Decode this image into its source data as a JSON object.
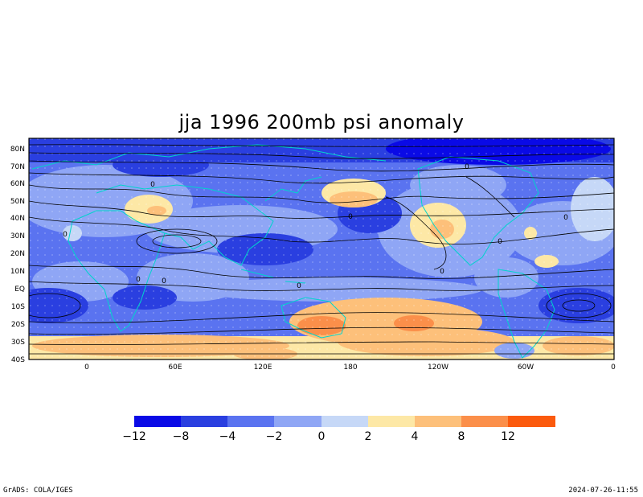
{
  "title": "jja 1996 200mb psi anomaly",
  "footer": {
    "left": "GrADS: COLA/IGES",
    "right": "2024-07-26-11:55"
  },
  "axes": {
    "lat_labels": [
      "80N",
      "70N",
      "60N",
      "50N",
      "40N",
      "30N",
      "20N",
      "10N",
      "EQ",
      "10S",
      "20S",
      "30S",
      "40S"
    ],
    "lon_labels": [
      "0",
      "60E",
      "120E",
      "180",
      "120W",
      "60W",
      "0"
    ]
  },
  "colorbar": {
    "labels": [
      "−12",
      "−8",
      "−4",
      "−2",
      "0",
      "2",
      "4",
      "8",
      "12"
    ],
    "colors": [
      "#0a0ae6",
      "#2a3fe0",
      "#5a73f0",
      "#8fa6f5",
      "#c6d8f7",
      "#fde8a6",
      "#fdc07a",
      "#fb8f4a",
      "#fb5a0d"
    ]
  },
  "contour_labels": [
    "0",
    "0",
    "0",
    "0",
    "0",
    "0",
    "0",
    "0",
    "0",
    "0"
  ],
  "colors": {
    "land_outline": "#00d4cc",
    "streamline": "#000000",
    "grid_dots": "#ffffff"
  }
}
